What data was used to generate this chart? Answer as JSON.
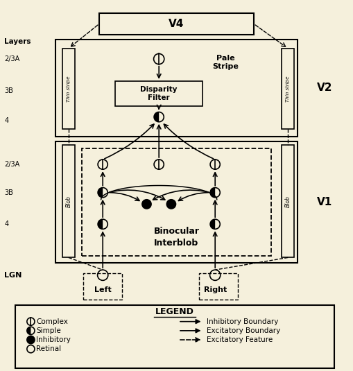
{
  "bg_color": "#f5f0dc",
  "layers_label": "Layers",
  "layer_labels": [
    "2/3A",
    "3B",
    "4"
  ],
  "legend_items_left": [
    "Complex",
    "Simple",
    "Inhibitory",
    "Retinal"
  ],
  "legend_items_right": [
    "Inhibitory Boundary",
    "Excitatory Boundary",
    "Excitatory Feature"
  ],
  "blob_label": "Blob",
  "thin_stripe_label": "Thin stripe",
  "binocular_label": "Binocular",
  "interblob_label": "Interblob",
  "pale_stripe_label": "Pale\nStripe",
  "disparity_filter_label": "Disparity\nFilter",
  "left_label": "Left",
  "right_label": "Right",
  "legend_label": "LEGEND",
  "lgn_label": "LGN",
  "v1_label": "V1",
  "v2_label": "V2",
  "v4_label": "V4"
}
